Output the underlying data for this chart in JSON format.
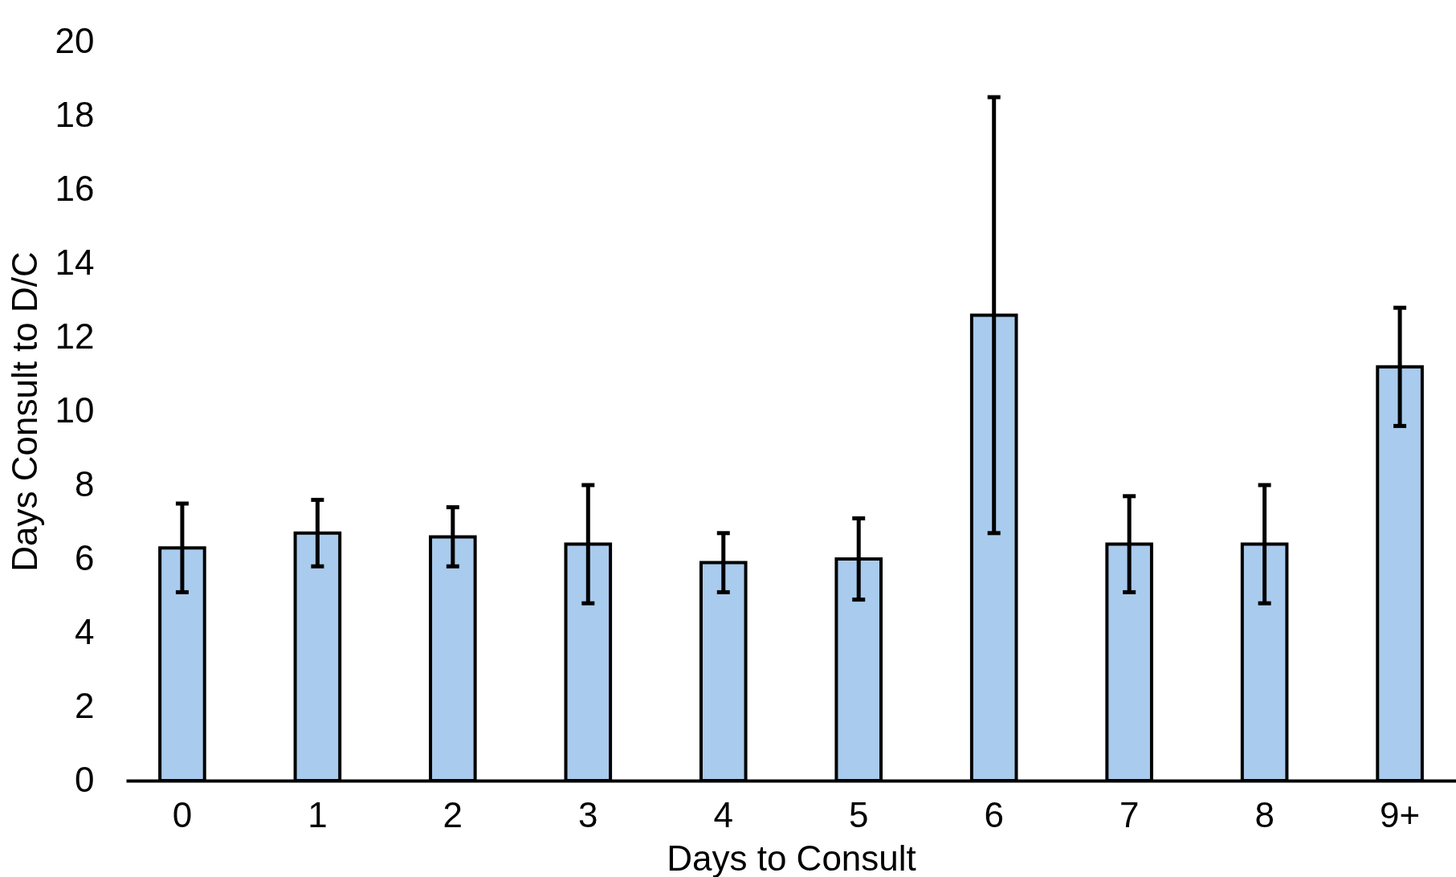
{
  "chart_data": {
    "type": "bar",
    "xlabel": "Days to Consult",
    "ylabel": "Days Consult to D/C",
    "categories": [
      "0",
      "1",
      "2",
      "3",
      "4",
      "5",
      "6",
      "7",
      "8",
      "9+"
    ],
    "values": [
      6.3,
      6.7,
      6.6,
      6.4,
      5.9,
      6.0,
      12.6,
      6.4,
      6.4,
      11.2
    ],
    "errors": [
      1.2,
      0.9,
      0.8,
      1.6,
      0.8,
      1.1,
      5.9,
      1.3,
      1.6,
      1.6
    ],
    "color": "#a9cbed",
    "ylim": [
      0,
      20
    ],
    "yticks": [
      0,
      2,
      4,
      6,
      8,
      10,
      12,
      14,
      16,
      18,
      20
    ],
    "grid": false
  }
}
